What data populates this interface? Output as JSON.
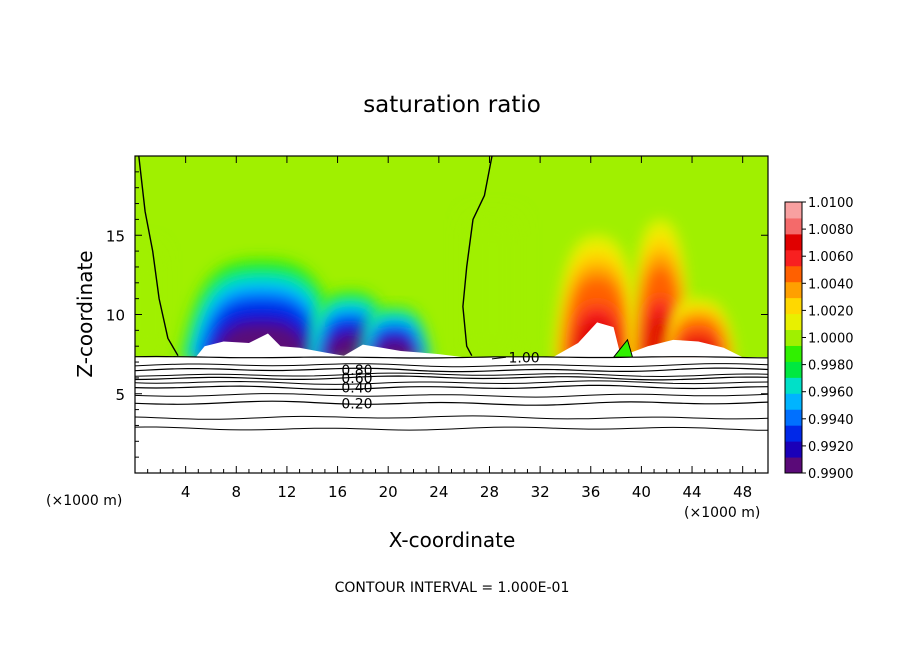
{
  "chart_data": {
    "type": "heatmap",
    "title": "saturation ratio",
    "xlabel": "X-coordinate",
    "ylabel": "Z-coordinate",
    "x_unit_left": "(×1000 m)",
    "x_unit_right": "(×1000 m)",
    "footer": "CONTOUR INTERVAL = 1.000E-01",
    "xlim": [
      0,
      50
    ],
    "ylim": [
      0,
      20
    ],
    "x_ticks": [
      4,
      8,
      12,
      16,
      20,
      24,
      28,
      32,
      36,
      40,
      44,
      48
    ],
    "y_ticks": [
      5,
      10,
      15
    ],
    "ground_level": 7.3,
    "colorbar": {
      "levels": [
        "1.0100",
        "1.0080",
        "1.0060",
        "1.0040",
        "1.0020",
        "1.0000",
        "0.9980",
        "0.9960",
        "0.9940",
        "0.9920",
        "0.9900"
      ],
      "min": 0.99,
      "max": 1.01,
      "colors": [
        "#5a0a78",
        "#1a00b8",
        "#0028e8",
        "#0070ff",
        "#00b4ff",
        "#00e0c8",
        "#00e840",
        "#30f000",
        "#a0f000",
        "#e8f000",
        "#ffd800",
        "#ffa000",
        "#ff6000",
        "#f82020",
        "#e00000",
        "#f46a6a",
        "#f8a0a0"
      ]
    },
    "contour_lines": [
      {
        "label": "0.20",
        "z": 4.4
      },
      {
        "label": "0.40",
        "z": 5.4
      },
      {
        "label": "0.60",
        "z": 6.0
      },
      {
        "label": "0.80",
        "z": 6.5
      },
      {
        "label": "1.00",
        "z": 7.3
      }
    ],
    "extra_line_z": [
      2.8,
      3.5,
      4.9,
      5.7,
      6.2,
      6.8
    ],
    "dry_regions": [
      {
        "x_center": 10,
        "x_halfwidth": 6.5,
        "z_top": 13.5
      },
      {
        "x_center": 17,
        "x_halfwidth": 3.5,
        "z_top": 11.5
      },
      {
        "x_center": 20.5,
        "x_halfwidth": 3,
        "z_top": 10.5
      }
    ],
    "moist_regions": [
      {
        "x_center": 36.5,
        "x_halfwidth": 3.5,
        "z_top": 15
      },
      {
        "x_center": 41.5,
        "x_halfwidth": 2.5,
        "z_top": 16
      },
      {
        "x_center": 44.5,
        "x_halfwidth": 3,
        "z_top": 11
      }
    ],
    "saturation_boundaries": [
      {
        "name": "left",
        "points": [
          [
            0.3,
            20
          ],
          [
            0.8,
            16.5
          ],
          [
            1.4,
            14
          ],
          [
            1.9,
            11
          ],
          [
            2.6,
            8.5
          ],
          [
            3.4,
            7.4
          ]
        ]
      },
      {
        "name": "right",
        "points": [
          [
            28.2,
            20
          ],
          [
            27.6,
            17.5
          ],
          [
            26.7,
            16
          ],
          [
            26.2,
            13
          ],
          [
            25.9,
            10.5
          ],
          [
            26.2,
            8
          ],
          [
            26.6,
            7.4
          ]
        ]
      }
    ]
  }
}
